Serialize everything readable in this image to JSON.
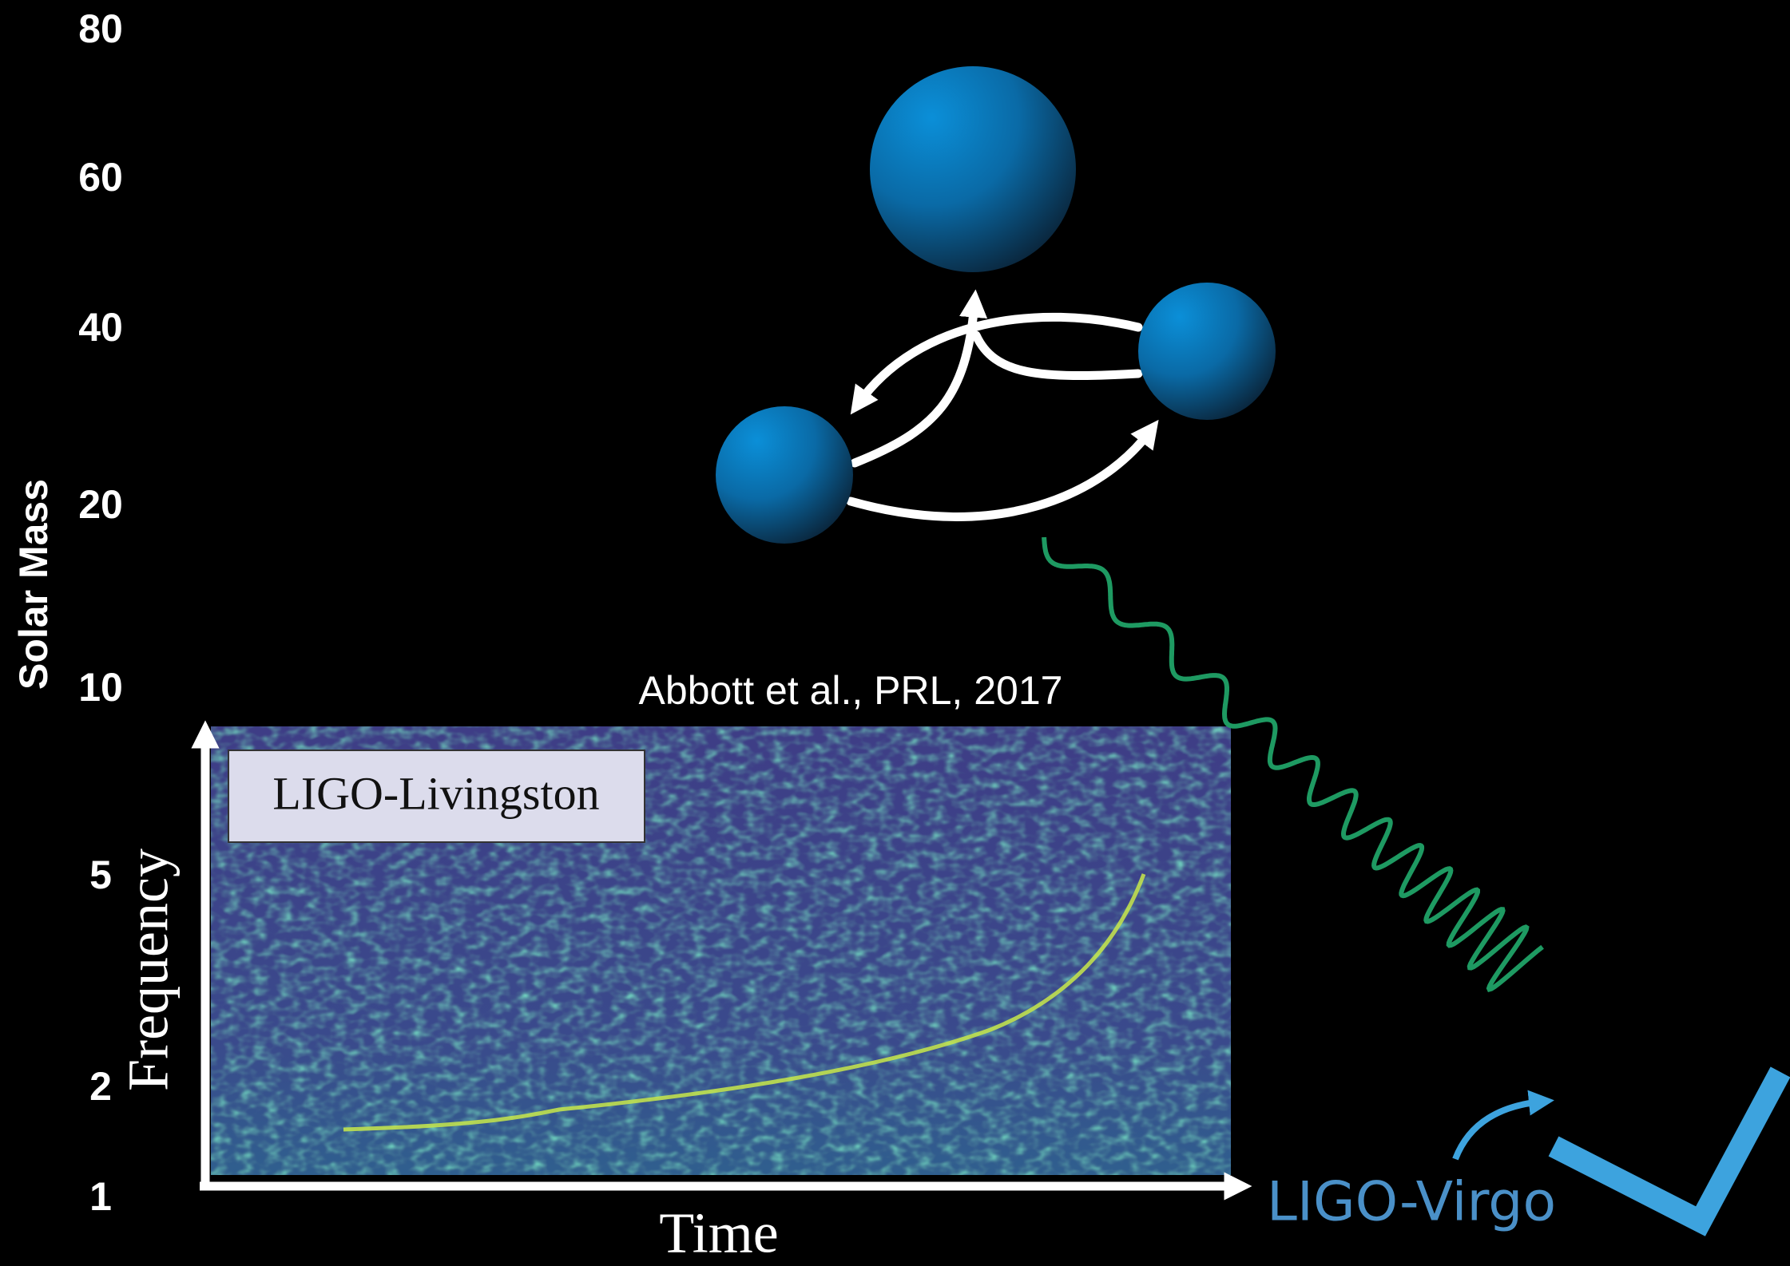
{
  "mass_axis": {
    "label": "Solar Mass",
    "ticks": [
      80,
      60,
      40,
      20,
      10,
      5,
      2,
      1
    ]
  },
  "citation": "Abbott et al., PRL, 2017",
  "spectrogram": {
    "detector": "LIGO-Livingston",
    "x_label": "Time",
    "y_label": "Frequency"
  },
  "network": "LIGO-Virgo"
}
